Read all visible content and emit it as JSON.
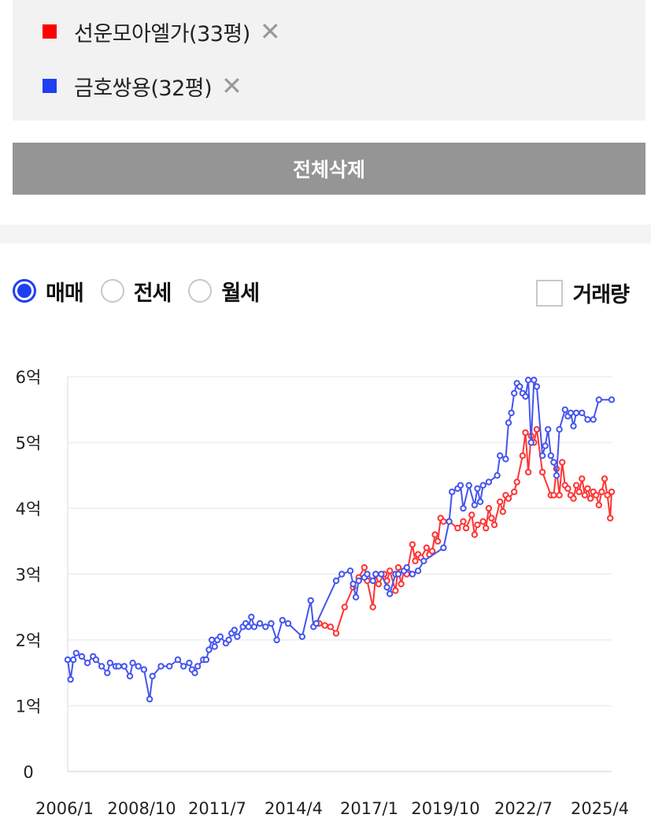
{
  "selected_items": [
    {
      "label": "선운모아엘가(33평)",
      "color": "#ff0000",
      "close": "✕"
    },
    {
      "label": "금호쌍용(32평)",
      "color": "#1f3ff0",
      "close": "✕"
    }
  ],
  "delete_all_label": "전체삭제",
  "trade_types": [
    {
      "label": "매매",
      "checked": true
    },
    {
      "label": "전세",
      "checked": false
    },
    {
      "label": "월세",
      "checked": false
    }
  ],
  "volume_label": "거래량",
  "chart_data": {
    "type": "line",
    "x_tick_labels": [
      "2006/1",
      "2008/10",
      "2011/7",
      "2014/4",
      "2017/1",
      "2019/10",
      "2022/7",
      "2025/4"
    ],
    "y_tick_labels": [
      "0",
      "1억",
      "2억",
      "3억",
      "4억",
      "5억",
      "6억"
    ],
    "ylim": [
      0,
      6
    ],
    "xlim": [
      2006.0,
      2025.25
    ],
    "y_unit": "억",
    "grid": true,
    "series": [
      {
        "name": "선운모아엘가(33평)",
        "color": "#ff3333",
        "points": [
          [
            2014.9,
            2.25
          ],
          [
            2015.1,
            2.22
          ],
          [
            2015.3,
            2.2
          ],
          [
            2015.5,
            2.1
          ],
          [
            2015.8,
            2.5
          ],
          [
            2016.1,
            2.8
          ],
          [
            2016.3,
            2.95
          ],
          [
            2016.5,
            3.1
          ],
          [
            2016.6,
            2.9
          ],
          [
            2016.8,
            2.5
          ],
          [
            2016.9,
            3.0
          ],
          [
            2017.0,
            2.85
          ],
          [
            2017.2,
            3.0
          ],
          [
            2017.3,
            2.9
          ],
          [
            2017.4,
            3.05
          ],
          [
            2017.6,
            2.75
          ],
          [
            2017.7,
            3.1
          ],
          [
            2017.8,
            2.85
          ],
          [
            2017.9,
            3.05
          ],
          [
            2018.0,
            3.0
          ],
          [
            2018.2,
            3.45
          ],
          [
            2018.3,
            3.2
          ],
          [
            2018.4,
            3.3
          ],
          [
            2018.5,
            3.25
          ],
          [
            2018.7,
            3.4
          ],
          [
            2018.8,
            3.3
          ],
          [
            2018.9,
            3.35
          ],
          [
            2019.0,
            3.6
          ],
          [
            2019.1,
            3.5
          ],
          [
            2019.2,
            3.85
          ],
          [
            2019.3,
            3.8
          ],
          [
            2019.5,
            3.8
          ],
          [
            2019.8,
            3.7
          ],
          [
            2020.0,
            3.8
          ],
          [
            2020.1,
            3.7
          ],
          [
            2020.3,
            3.9
          ],
          [
            2020.4,
            3.6
          ],
          [
            2020.5,
            3.75
          ],
          [
            2020.7,
            3.8
          ],
          [
            2020.8,
            3.7
          ],
          [
            2020.9,
            4.0
          ],
          [
            2021.0,
            3.85
          ],
          [
            2021.1,
            3.75
          ],
          [
            2021.3,
            4.1
          ],
          [
            2021.4,
            3.95
          ],
          [
            2021.5,
            4.2
          ],
          [
            2021.6,
            4.15
          ],
          [
            2021.8,
            4.25
          ],
          [
            2021.9,
            4.4
          ],
          [
            2022.1,
            4.8
          ],
          [
            2022.2,
            5.15
          ],
          [
            2022.3,
            4.55
          ],
          [
            2022.4,
            5.1
          ],
          [
            2022.5,
            5.0
          ],
          [
            2022.6,
            5.2
          ],
          [
            2022.8,
            4.55
          ],
          [
            2023.1,
            4.2
          ],
          [
            2023.2,
            4.2
          ],
          [
            2023.3,
            4.6
          ],
          [
            2023.4,
            4.2
          ],
          [
            2023.5,
            4.7
          ],
          [
            2023.6,
            4.35
          ],
          [
            2023.7,
            4.3
          ],
          [
            2023.8,
            4.2
          ],
          [
            2023.9,
            4.15
          ],
          [
            2024.0,
            4.35
          ],
          [
            2024.1,
            4.25
          ],
          [
            2024.2,
            4.45
          ],
          [
            2024.3,
            4.2
          ],
          [
            2024.4,
            4.3
          ],
          [
            2024.5,
            4.15
          ],
          [
            2024.6,
            4.25
          ],
          [
            2024.7,
            4.2
          ],
          [
            2024.8,
            4.05
          ],
          [
            2024.9,
            4.25
          ],
          [
            2025.0,
            4.45
          ],
          [
            2025.1,
            4.2
          ],
          [
            2025.2,
            3.85
          ],
          [
            2025.25,
            4.25
          ]
        ]
      },
      {
        "name": "금호쌍용(32평)",
        "color": "#4455ee",
        "points": [
          [
            2006.0,
            1.7
          ],
          [
            2006.1,
            1.4
          ],
          [
            2006.2,
            1.7
          ],
          [
            2006.3,
            1.8
          ],
          [
            2006.5,
            1.75
          ],
          [
            2006.7,
            1.65
          ],
          [
            2006.9,
            1.75
          ],
          [
            2007.0,
            1.7
          ],
          [
            2007.2,
            1.6
          ],
          [
            2007.4,
            1.5
          ],
          [
            2007.5,
            1.65
          ],
          [
            2007.7,
            1.6
          ],
          [
            2007.8,
            1.6
          ],
          [
            2008.0,
            1.6
          ],
          [
            2008.2,
            1.45
          ],
          [
            2008.3,
            1.65
          ],
          [
            2008.5,
            1.6
          ],
          [
            2008.7,
            1.55
          ],
          [
            2008.9,
            1.1
          ],
          [
            2009.0,
            1.45
          ],
          [
            2009.3,
            1.6
          ],
          [
            2009.6,
            1.6
          ],
          [
            2009.9,
            1.7
          ],
          [
            2010.1,
            1.6
          ],
          [
            2010.3,
            1.65
          ],
          [
            2010.4,
            1.55
          ],
          [
            2010.5,
            1.5
          ],
          [
            2010.6,
            1.6
          ],
          [
            2010.8,
            1.7
          ],
          [
            2010.9,
            1.7
          ],
          [
            2011.0,
            1.85
          ],
          [
            2011.1,
            2.0
          ],
          [
            2011.2,
            1.9
          ],
          [
            2011.3,
            2.0
          ],
          [
            2011.4,
            2.05
          ],
          [
            2011.6,
            1.95
          ],
          [
            2011.7,
            2.0
          ],
          [
            2011.8,
            2.1
          ],
          [
            2011.9,
            2.15
          ],
          [
            2012.0,
            2.05
          ],
          [
            2012.2,
            2.2
          ],
          [
            2012.3,
            2.25
          ],
          [
            2012.4,
            2.2
          ],
          [
            2012.5,
            2.35
          ],
          [
            2012.6,
            2.2
          ],
          [
            2012.8,
            2.25
          ],
          [
            2013.0,
            2.2
          ],
          [
            2013.2,
            2.25
          ],
          [
            2013.4,
            2.0
          ],
          [
            2013.6,
            2.3
          ],
          [
            2013.8,
            2.25
          ],
          [
            2014.3,
            2.05
          ],
          [
            2014.6,
            2.6
          ],
          [
            2014.7,
            2.2
          ],
          [
            2014.8,
            2.25
          ],
          [
            2015.5,
            2.9
          ],
          [
            2015.7,
            3.0
          ],
          [
            2016.0,
            3.05
          ],
          [
            2016.1,
            2.85
          ],
          [
            2016.2,
            2.65
          ],
          [
            2016.3,
            2.9
          ],
          [
            2016.5,
            2.95
          ],
          [
            2016.6,
            3.0
          ],
          [
            2016.8,
            2.9
          ],
          [
            2016.9,
            3.0
          ],
          [
            2017.1,
            3.0
          ],
          [
            2017.3,
            2.8
          ],
          [
            2017.4,
            2.7
          ],
          [
            2017.6,
            3.0
          ],
          [
            2017.7,
            3.0
          ],
          [
            2017.9,
            3.05
          ],
          [
            2018.0,
            3.1
          ],
          [
            2018.2,
            3.0
          ],
          [
            2018.4,
            3.05
          ],
          [
            2018.6,
            3.2
          ],
          [
            2019.3,
            3.4
          ],
          [
            2019.5,
            3.8
          ],
          [
            2019.6,
            4.25
          ],
          [
            2019.8,
            4.3
          ],
          [
            2019.9,
            4.35
          ],
          [
            2020.0,
            4.0
          ],
          [
            2020.2,
            4.35
          ],
          [
            2020.4,
            4.05
          ],
          [
            2020.5,
            4.3
          ],
          [
            2020.6,
            4.1
          ],
          [
            2020.7,
            4.35
          ],
          [
            2020.9,
            4.4
          ],
          [
            2021.2,
            4.5
          ],
          [
            2021.3,
            4.8
          ],
          [
            2021.5,
            4.75
          ],
          [
            2021.6,
            5.3
          ],
          [
            2021.7,
            5.45
          ],
          [
            2021.8,
            5.75
          ],
          [
            2021.9,
            5.9
          ],
          [
            2022.0,
            5.85
          ],
          [
            2022.1,
            5.75
          ],
          [
            2022.2,
            5.7
          ],
          [
            2022.3,
            5.95
          ],
          [
            2022.4,
            5.0
          ],
          [
            2022.5,
            5.95
          ],
          [
            2022.6,
            5.85
          ],
          [
            2022.8,
            4.8
          ],
          [
            2022.9,
            4.95
          ],
          [
            2023.0,
            5.2
          ],
          [
            2023.1,
            4.8
          ],
          [
            2023.2,
            4.7
          ],
          [
            2023.3,
            4.5
          ],
          [
            2023.4,
            5.2
          ],
          [
            2023.6,
            5.5
          ],
          [
            2023.7,
            5.4
          ],
          [
            2023.8,
            5.45
          ],
          [
            2023.9,
            5.25
          ],
          [
            2024.0,
            5.45
          ],
          [
            2024.2,
            5.45
          ],
          [
            2024.4,
            5.35
          ],
          [
            2024.6,
            5.35
          ],
          [
            2024.8,
            5.65
          ],
          [
            2025.25,
            5.65
          ]
        ]
      }
    ]
  }
}
